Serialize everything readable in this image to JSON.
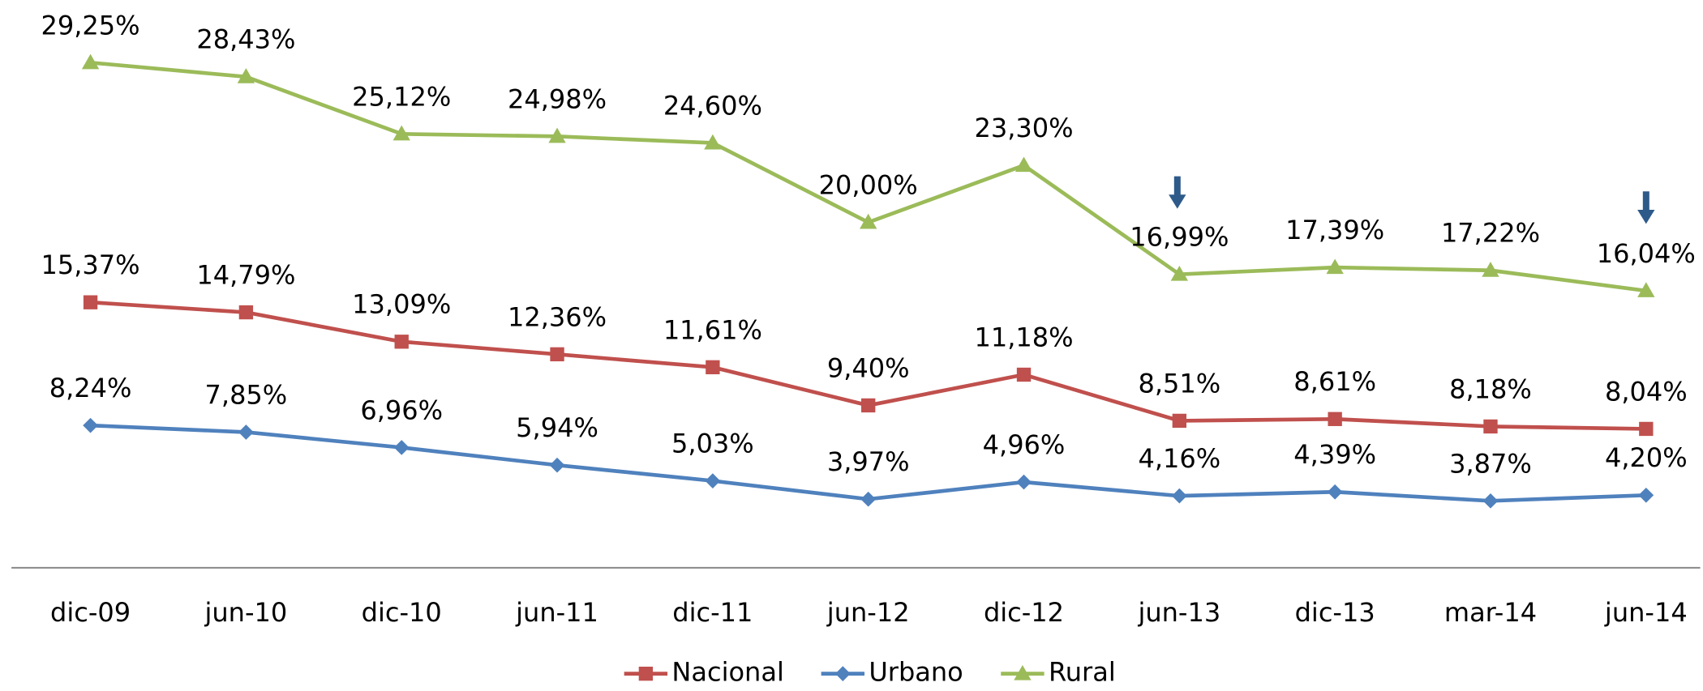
{
  "chart_data": {
    "type": "line",
    "categories": [
      "dic-09",
      "jun-10",
      "dic-10",
      "jun-11",
      "dic-11",
      "jun-12",
      "dic-12",
      "jun-13",
      "dic-13",
      "mar-14",
      "jun-14"
    ],
    "series": [
      {
        "name": "Nacional",
        "color": "#c0504d",
        "marker": "square",
        "values": [
          15.37,
          14.79,
          13.09,
          12.36,
          11.61,
          9.4,
          11.18,
          8.51,
          8.61,
          8.18,
          8.04
        ],
        "value_labels": [
          "15,37%",
          "14,79%",
          "13,09%",
          "12,36%",
          "11,61%",
          "9,40%",
          "11,18%",
          "8,51%",
          "8,61%",
          "8,18%",
          "8,04%"
        ]
      },
      {
        "name": "Urbano",
        "color": "#4f81bd",
        "marker": "diamond",
        "values": [
          8.24,
          7.85,
          6.96,
          5.94,
          5.03,
          3.97,
          4.96,
          4.16,
          4.39,
          3.87,
          4.2
        ],
        "value_labels": [
          "8,24%",
          "7,85%",
          "6,96%",
          "5,94%",
          "5,03%",
          "3,97%",
          "4,96%",
          "4,16%",
          "4,39%",
          "3,87%",
          "4,20%"
        ]
      },
      {
        "name": "Rural",
        "color": "#9bbb59",
        "marker": "triangle",
        "values": [
          29.25,
          28.43,
          25.12,
          24.98,
          24.6,
          20.0,
          23.3,
          16.99,
          17.39,
          17.22,
          16.04
        ],
        "value_labels": [
          "29,25%",
          "28,43%",
          "25,12%",
          "24,98%",
          "24,60%",
          "20,00%",
          "23,30%",
          "16,99%",
          "17,39%",
          "17,22%",
          "16,04%"
        ]
      }
    ],
    "ylim": [
      0,
      32
    ],
    "legend": "bottom"
  }
}
